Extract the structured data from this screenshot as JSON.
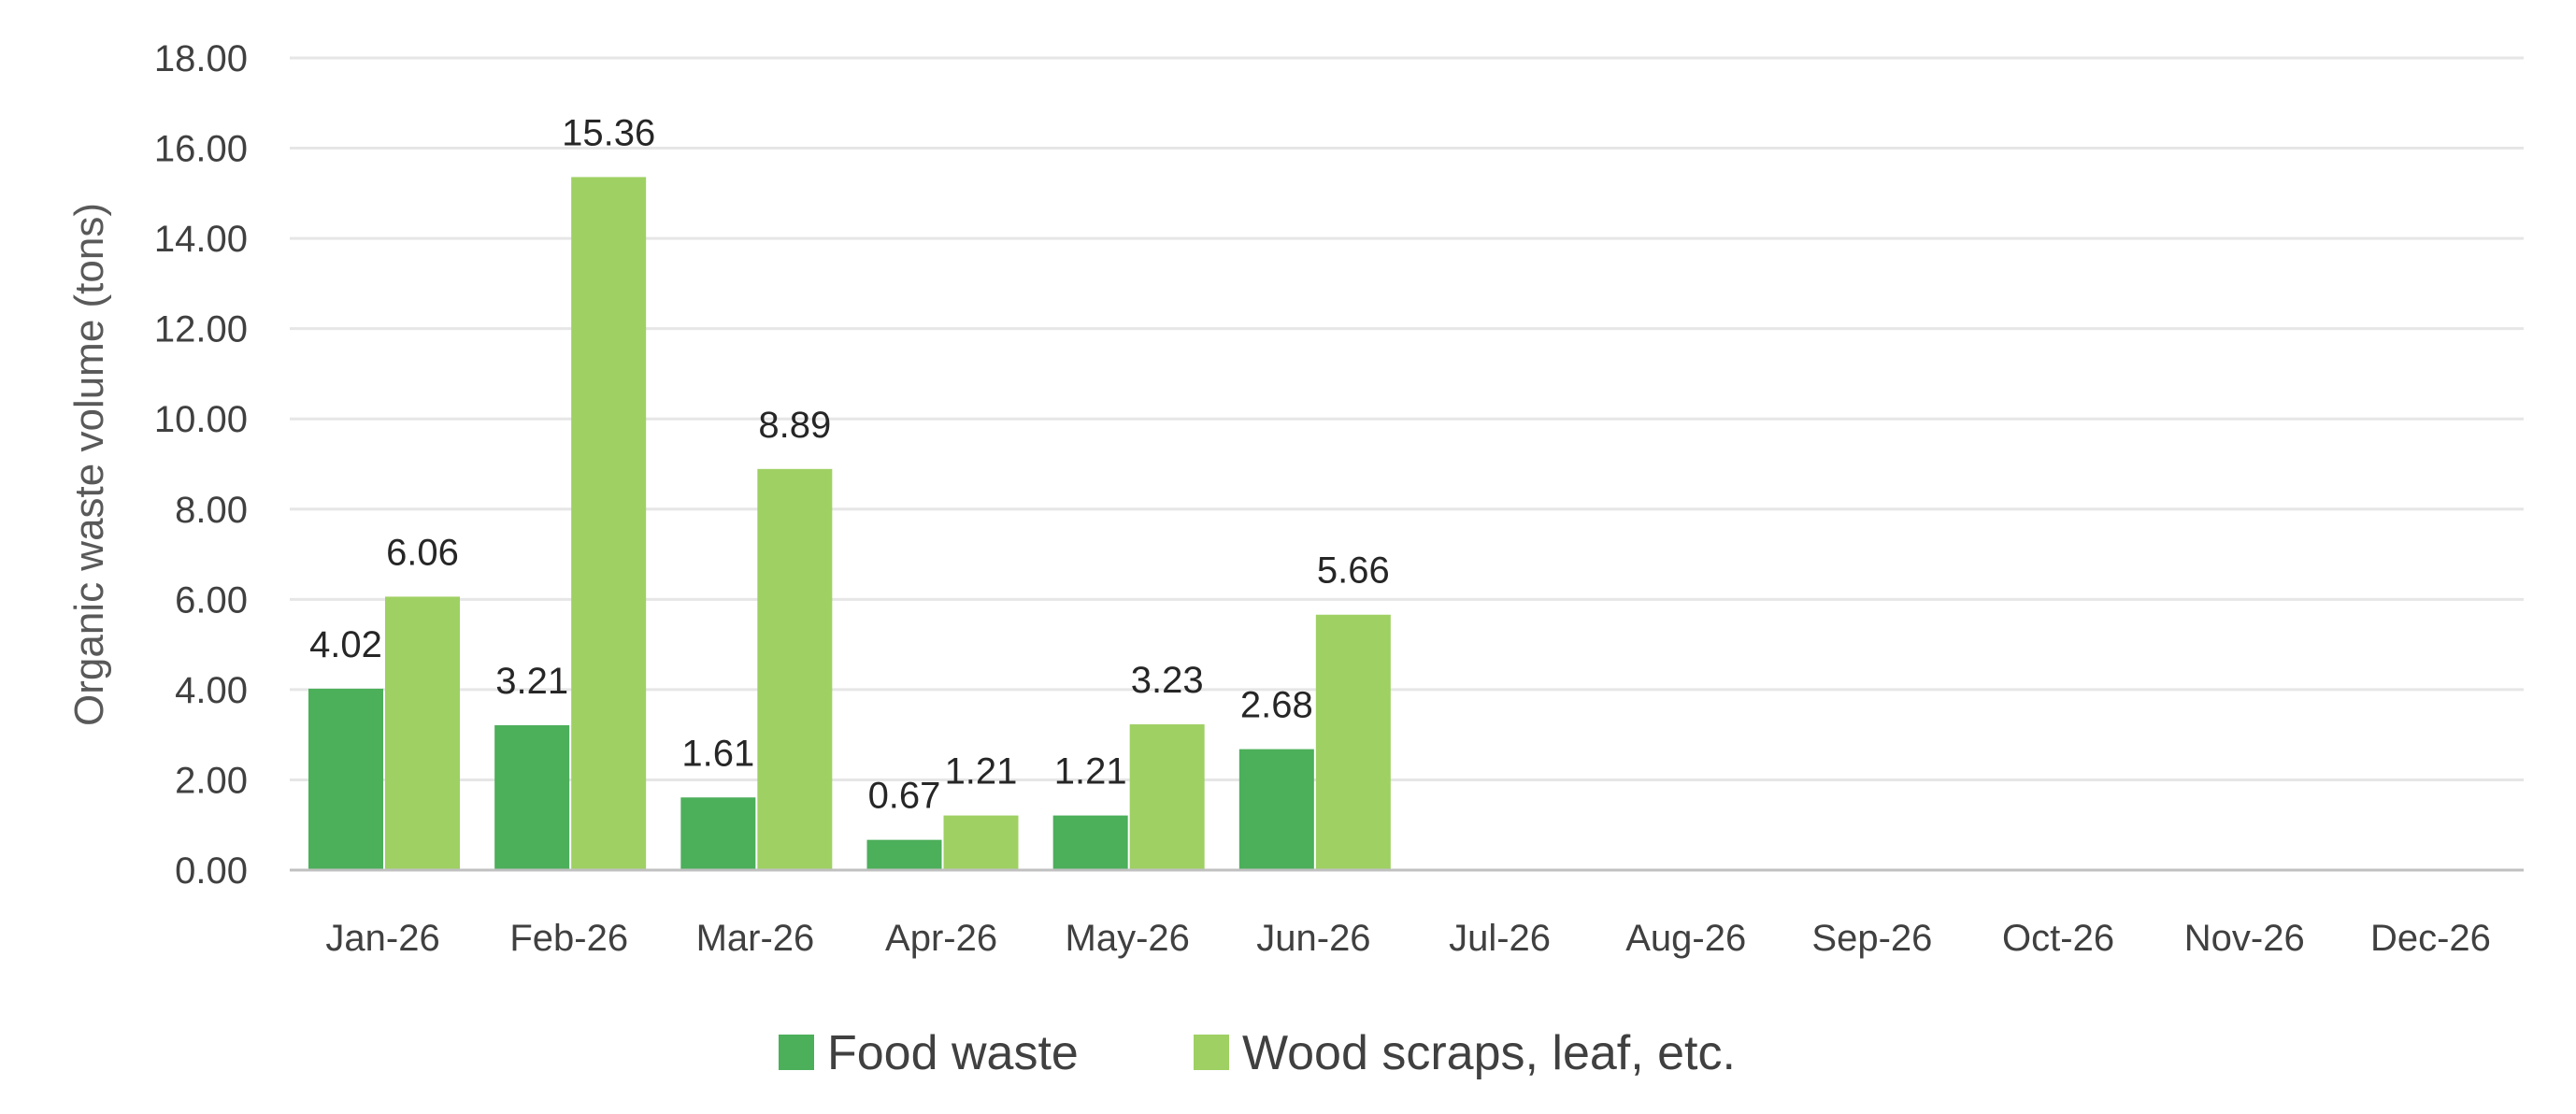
{
  "chart_data": {
    "type": "bar",
    "title": "",
    "xlabel": "",
    "ylabel": "Organic waste volume (tons)",
    "categories": [
      "Jan-26",
      "Feb-26",
      "Mar-26",
      "Apr-26",
      "May-26",
      "Jun-26",
      "Jul-26",
      "Aug-26",
      "Sep-26",
      "Oct-26",
      "Nov-26",
      "Dec-26"
    ],
    "series": [
      {
        "name": "Food waste",
        "color": "#4caf5a",
        "values": [
          4.02,
          3.21,
          1.61,
          0.67,
          1.21,
          2.68,
          null,
          null,
          null,
          null,
          null,
          null
        ],
        "labels": [
          "4.02",
          "3.21",
          "1.61",
          "0.67",
          "1.21",
          "2.68"
        ]
      },
      {
        "name": "Wood scraps, leaf, etc.",
        "color": "#9fd063",
        "values": [
          6.06,
          15.36,
          8.89,
          1.21,
          3.23,
          5.66,
          null,
          null,
          null,
          null,
          null,
          null
        ],
        "labels": [
          "6.06",
          "15.36",
          "8.89",
          "1.21",
          "3.23",
          "5.66"
        ]
      }
    ],
    "ylim": [
      0,
      18
    ],
    "ytick_values": [
      0,
      2,
      4,
      6,
      8,
      10,
      12,
      14,
      16,
      18
    ],
    "yticks": [
      "0.00",
      "2.00",
      "4.00",
      "6.00",
      "8.00",
      "10.00",
      "12.00",
      "14.00",
      "16.00",
      "18.00"
    ],
    "grid": true,
    "legend_position": "bottom",
    "gridline_color": "#e6e6e6",
    "axis_color": "#c0c0c0"
  }
}
